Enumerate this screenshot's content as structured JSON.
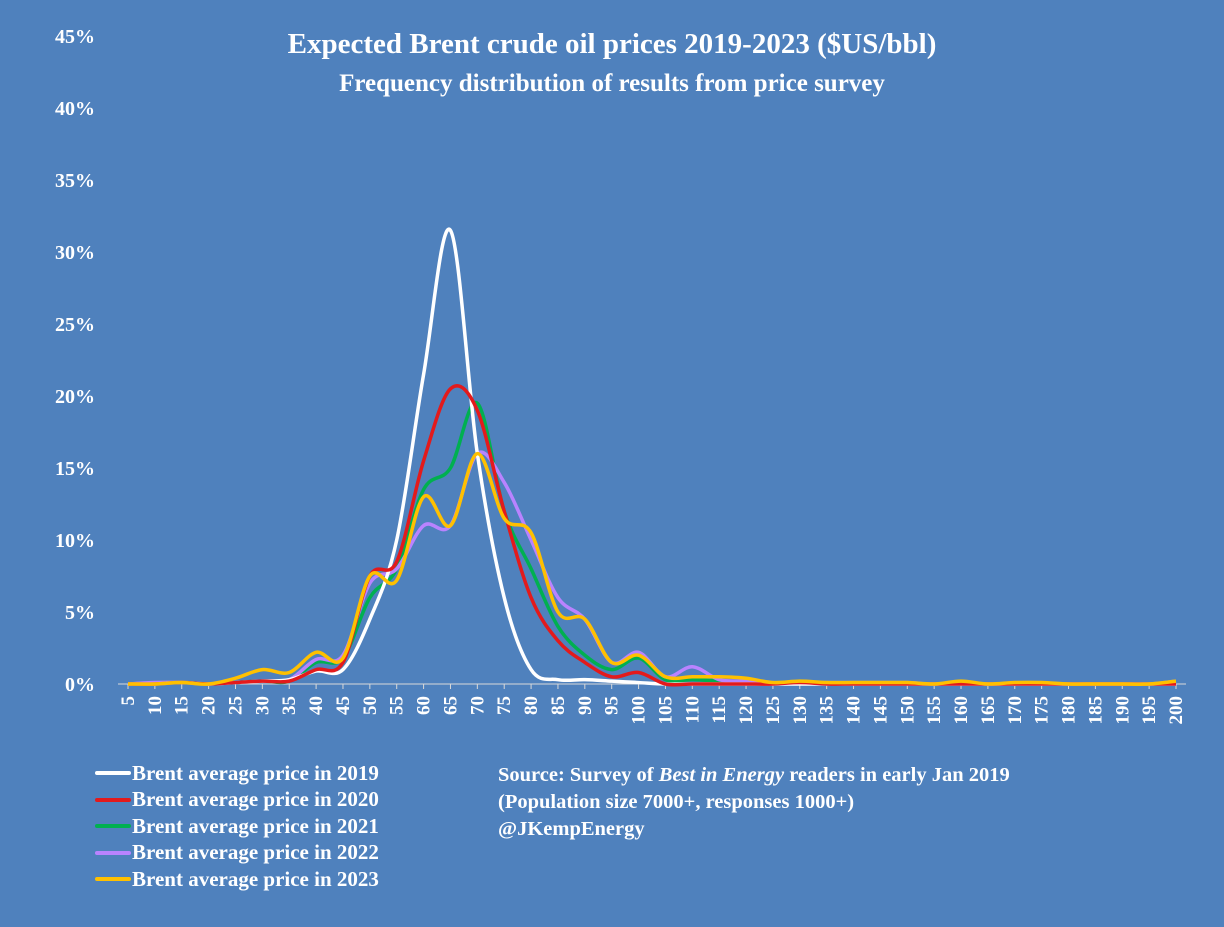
{
  "title": "Expected Brent crude oil prices 2019-2023 ($US/bbl)",
  "subtitle": "Frequency distribution of results from price survey",
  "source": {
    "line1_prefix": "Source: Survey of ",
    "line1_italic": "Best in Energy",
    "line1_suffix": "  readers in early Jan 2019",
    "line2": "(Population size 7000+, responses 1000+)",
    "line3": "@JKempEnergy"
  },
  "chart_data": {
    "type": "line",
    "title": "Expected Brent crude oil prices 2019-2023 ($US/bbl)",
    "subtitle": "Frequency distribution of results from price survey",
    "xlabel": "",
    "ylabel": "",
    "ylim": [
      0,
      45
    ],
    "y_ticks": [
      "0%",
      "5%",
      "10%",
      "15%",
      "20%",
      "25%",
      "30%",
      "35%",
      "40%",
      "45%"
    ],
    "grid": false,
    "legend_position": "bottom-left",
    "x": [
      5,
      10,
      15,
      20,
      25,
      30,
      35,
      40,
      45,
      50,
      55,
      60,
      65,
      70,
      75,
      80,
      85,
      90,
      95,
      100,
      105,
      110,
      115,
      120,
      125,
      130,
      135,
      140,
      145,
      150,
      155,
      160,
      165,
      170,
      175,
      180,
      185,
      190,
      195,
      200
    ],
    "series": [
      {
        "name": "Brent average price in 2019",
        "color": "#FFFFFF",
        "values": [
          0,
          0,
          0.1,
          0,
          0.1,
          0.2,
          0.3,
          0.9,
          1,
          4.5,
          10,
          21.5,
          31.5,
          16,
          6,
          1,
          0.3,
          0.3,
          0.2,
          0.1,
          0,
          0,
          0,
          0,
          0,
          0,
          0,
          0,
          0,
          0,
          0,
          0,
          0,
          0,
          0,
          0,
          0,
          0,
          0,
          0
        ]
      },
      {
        "name": "Brent average price in 2020",
        "color": "#E31A1C",
        "values": [
          0,
          0,
          0.1,
          0,
          0.1,
          0.2,
          0.2,
          1,
          1.5,
          7.5,
          8.5,
          15.5,
          20.5,
          19,
          12,
          6,
          3,
          1.5,
          0.5,
          0.8,
          0,
          0,
          0,
          0,
          0,
          0.1,
          0,
          0,
          0,
          0,
          0,
          0,
          0,
          0,
          0,
          0,
          0,
          0,
          0,
          0
        ]
      },
      {
        "name": "Brent average price in 2021",
        "color": "#00B050",
        "values": [
          0,
          0,
          0.1,
          0,
          0.1,
          0.2,
          0.2,
          1.5,
          1.8,
          6,
          8,
          13.5,
          15,
          19.5,
          12,
          8,
          4,
          2,
          1,
          1.8,
          0.3,
          0.3,
          0.2,
          0.1,
          0.1,
          0.1,
          0.1,
          0.1,
          0.1,
          0.1,
          0,
          0.1,
          0,
          0,
          0,
          0,
          0,
          0,
          0,
          0.2
        ]
      },
      {
        "name": "Brent average price in 2022",
        "color": "#B983FF",
        "values": [
          0,
          0.1,
          0.1,
          0,
          0.1,
          0.2,
          0.3,
          1.7,
          2,
          7,
          8,
          11,
          11,
          16,
          14,
          10,
          6,
          4.5,
          1.5,
          2.2,
          0.5,
          1.2,
          0.3,
          0.2,
          0.1,
          0.1,
          0.1,
          0.1,
          0.1,
          0.1,
          0,
          0.1,
          0,
          0,
          0,
          0,
          0,
          0,
          0,
          0.2
        ]
      },
      {
        "name": "Brent average price in 2023",
        "color": "#FFC000",
        "values": [
          0,
          0,
          0.1,
          0,
          0.4,
          1,
          0.8,
          2.2,
          1.8,
          7.5,
          7.2,
          13,
          11,
          16,
          11.5,
          10.5,
          5,
          4.5,
          1.5,
          2,
          0.5,
          0.5,
          0.5,
          0.4,
          0.1,
          0.2,
          0.1,
          0.1,
          0.1,
          0.1,
          0,
          0.2,
          0,
          0.1,
          0.1,
          0,
          0,
          0,
          0,
          0.2
        ]
      }
    ]
  }
}
